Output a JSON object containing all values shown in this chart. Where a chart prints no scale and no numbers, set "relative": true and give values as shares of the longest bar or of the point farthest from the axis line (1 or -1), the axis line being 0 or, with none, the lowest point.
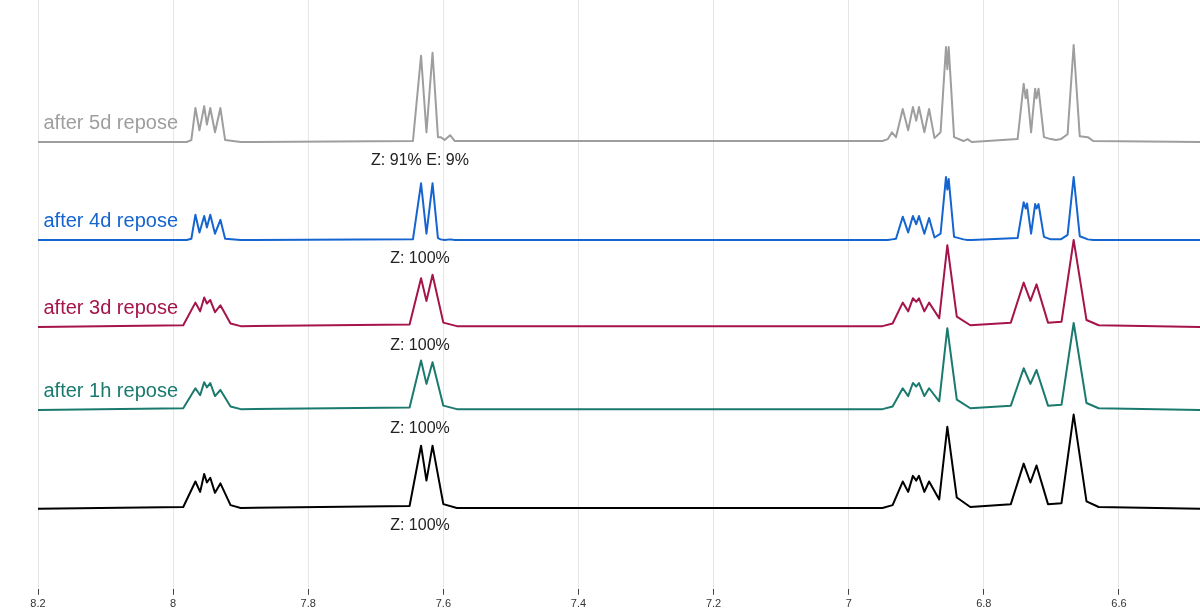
{
  "chart_data": [
    {
      "type": "line",
      "relative": true,
      "grid": "x",
      "tick_labels": false,
      "xlim": [
        8.2,
        6.48
      ],
      "xticks": [
        8.2,
        8,
        7.8,
        7.6,
        7.4,
        7.2,
        7,
        6.8,
        6.6
      ],
      "x": [
        8.2,
        7.98,
        7.973,
        7.967,
        7.961,
        7.954,
        7.95,
        7.945,
        7.938,
        7.93,
        7.923,
        7.9,
        7.645,
        7.633,
        7.625,
        7.616,
        7.608,
        7.604,
        7.598,
        7.59,
        7.583,
        6.95,
        6.942,
        6.936,
        6.93,
        6.92,
        6.912,
        6.905,
        6.9,
        6.896,
        6.888,
        6.881,
        6.873,
        6.864,
        6.856,
        6.854,
        6.852,
        6.844,
        6.83,
        6.824,
        6.818,
        6.75,
        6.741,
        6.738,
        6.736,
        6.73,
        6.724,
        6.722,
        6.719,
        6.711,
        6.701,
        6.693,
        6.686,
        6.676,
        6.667,
        6.658,
        6.646,
        6.638,
        6.48
      ],
      "series": [
        {
          "name": "after 5d repose",
          "color": "#9e9e9e",
          "values": [
            0,
            0,
            0.02,
            0.35,
            0.12,
            0.37,
            0.18,
            0.35,
            0.1,
            0.35,
            0.02,
            0,
            0.01,
            0.89,
            0.1,
            0.92,
            0.05,
            0.05,
            0.02,
            0.07,
            0.01,
            0.01,
            0.03,
            0.1,
            0.05,
            0.34,
            0.12,
            0.36,
            0.22,
            0.36,
            0.1,
            0.34,
            0.04,
            0.1,
            0.98,
            0.75,
            0.98,
            0.05,
            0.01,
            0.03,
            0,
            0.03,
            0.6,
            0.45,
            0.54,
            0.1,
            0.55,
            0.45,
            0.55,
            0.05,
            0.03,
            0.02,
            0.03,
            0.08,
            1,
            0.06,
            0.05,
            0.01,
            0
          ]
        }
      ],
      "annotations": [
        "Z: 91%  E: 9%"
      ]
    },
    {
      "type": "line",
      "relative": true,
      "grid": "x",
      "tick_labels": false,
      "xlim": [
        8.2,
        6.48
      ],
      "xticks": [
        8.2,
        8,
        7.8,
        7.6,
        7.4,
        7.2,
        7,
        6.8,
        6.6
      ],
      "x": [
        8.2,
        7.98,
        7.973,
        7.967,
        7.961,
        7.954,
        7.95,
        7.945,
        7.938,
        7.93,
        7.923,
        7.9,
        7.645,
        7.633,
        7.625,
        7.616,
        7.608,
        7.604,
        7.598,
        7.59,
        7.583,
        6.95,
        6.942,
        6.936,
        6.93,
        6.92,
        6.912,
        6.905,
        6.9,
        6.896,
        6.888,
        6.881,
        6.873,
        6.864,
        6.856,
        6.854,
        6.852,
        6.844,
        6.83,
        6.824,
        6.818,
        6.75,
        6.741,
        6.738,
        6.736,
        6.73,
        6.724,
        6.722,
        6.719,
        6.711,
        6.701,
        6.693,
        6.686,
        6.676,
        6.667,
        6.658,
        6.646,
        6.638,
        6.48
      ],
      "series": [
        {
          "name": "after 4d repose",
          "color": "#1565d0",
          "values": [
            0,
            0,
            0.02,
            0.4,
            0.12,
            0.38,
            0.2,
            0.4,
            0.1,
            0.32,
            0.02,
            0,
            0.01,
            0.9,
            0.1,
            0.9,
            0.03,
            0.01,
            0,
            0.01,
            0,
            0,
            0,
            0.01,
            0.02,
            0.37,
            0.12,
            0.38,
            0.25,
            0.38,
            0.1,
            0.35,
            0.04,
            0.1,
            1,
            0.8,
            0.97,
            0.05,
            0.01,
            0,
            0,
            0.03,
            0.6,
            0.5,
            0.58,
            0.1,
            0.57,
            0.5,
            0.57,
            0.05,
            0.01,
            0.01,
            0.01,
            0.08,
            1,
            0.06,
            0.01,
            0,
            0
          ]
        }
      ],
      "annotations": [
        "Z: 100%"
      ]
    },
    {
      "type": "line",
      "relative": true,
      "grid": "x",
      "tick_labels": false,
      "xlim": [
        8.2,
        6.48
      ],
      "xticks": [
        8.2,
        8,
        7.8,
        7.6,
        7.4,
        7.2,
        7,
        6.8,
        6.6
      ],
      "x": [
        8.2,
        7.985,
        7.967,
        7.96,
        7.954,
        7.95,
        7.945,
        7.938,
        7.93,
        7.915,
        7.9,
        7.65,
        7.633,
        7.625,
        7.616,
        7.6,
        7.58,
        6.95,
        6.935,
        6.92,
        6.912,
        6.905,
        6.9,
        6.896,
        6.888,
        6.881,
        6.866,
        6.854,
        6.84,
        6.82,
        6.76,
        6.741,
        6.731,
        6.722,
        6.705,
        6.685,
        6.667,
        6.648,
        6.63,
        6.48
      ],
      "series": [
        {
          "name": "after 3d repose",
          "color": "#a5144a",
          "values": [
            0,
            0.02,
            0.28,
            0.18,
            0.34,
            0.27,
            0.31,
            0.17,
            0.25,
            0.04,
            0.01,
            0.03,
            0.56,
            0.3,
            0.6,
            0.05,
            0.01,
            0.01,
            0.04,
            0.28,
            0.18,
            0.33,
            0.29,
            0.33,
            0.18,
            0.28,
            0.1,
            0.94,
            0.12,
            0.02,
            0.05,
            0.51,
            0.3,
            0.49,
            0.05,
            0.06,
            1,
            0.08,
            0.02,
            0
          ]
        }
      ],
      "annotations": [
        "Z: 100%"
      ]
    },
    {
      "type": "line",
      "relative": true,
      "grid": "x",
      "tick_labels": false,
      "xlim": [
        8.2,
        6.48
      ],
      "xticks": [
        8.2,
        8,
        7.8,
        7.6,
        7.4,
        7.2,
        7,
        6.8,
        6.6
      ],
      "x": [
        8.2,
        7.985,
        7.967,
        7.96,
        7.954,
        7.95,
        7.945,
        7.938,
        7.93,
        7.915,
        7.9,
        7.65,
        7.633,
        7.625,
        7.616,
        7.6,
        7.58,
        6.95,
        6.935,
        6.92,
        6.912,
        6.905,
        6.9,
        6.896,
        6.888,
        6.881,
        6.866,
        6.854,
        6.84,
        6.82,
        6.76,
        6.741,
        6.731,
        6.722,
        6.705,
        6.685,
        6.667,
        6.648,
        6.63,
        6.48
      ],
      "series": [
        {
          "name": "after 1h repose",
          "color": "#1a7a6e",
          "values": [
            0,
            0.02,
            0.25,
            0.17,
            0.32,
            0.26,
            0.31,
            0.16,
            0.23,
            0.04,
            0.01,
            0.03,
            0.57,
            0.3,
            0.55,
            0.05,
            0.01,
            0.01,
            0.04,
            0.25,
            0.16,
            0.31,
            0.27,
            0.31,
            0.16,
            0.25,
            0.1,
            0.94,
            0.12,
            0.02,
            0.05,
            0.48,
            0.3,
            0.46,
            0.05,
            0.06,
            1,
            0.08,
            0.02,
            0
          ]
        }
      ],
      "annotations": [
        "Z: 100%"
      ]
    },
    {
      "type": "line",
      "relative": true,
      "grid": "x",
      "tick_labels": "x",
      "xlim": [
        8.2,
        6.48
      ],
      "xticks": [
        8.2,
        8,
        7.8,
        7.6,
        7.4,
        7.2,
        7,
        6.8,
        6.6
      ],
      "x": [
        8.2,
        7.985,
        7.967,
        7.96,
        7.954,
        7.95,
        7.945,
        7.938,
        7.93,
        7.915,
        7.9,
        7.65,
        7.633,
        7.625,
        7.616,
        7.6,
        7.58,
        6.95,
        6.935,
        6.92,
        6.912,
        6.905,
        6.9,
        6.896,
        6.888,
        6.881,
        6.866,
        6.854,
        6.84,
        6.82,
        6.76,
        6.741,
        6.731,
        6.722,
        6.705,
        6.685,
        6.667,
        6.648,
        6.63,
        6.48
      ],
      "series": [
        {
          "color": "#000000",
          "values": [
            0,
            0.02,
            0.29,
            0.18,
            0.37,
            0.28,
            0.33,
            0.17,
            0.27,
            0.04,
            0.01,
            0.03,
            0.67,
            0.3,
            0.67,
            0.05,
            0.01,
            0.01,
            0.04,
            0.29,
            0.18,
            0.35,
            0.3,
            0.35,
            0.18,
            0.29,
            0.1,
            0.87,
            0.12,
            0.02,
            0.05,
            0.48,
            0.28,
            0.46,
            0.05,
            0.06,
            1,
            0.08,
            0.02,
            0
          ]
        }
      ],
      "annotations": [
        "Z: 100%"
      ]
    }
  ]
}
